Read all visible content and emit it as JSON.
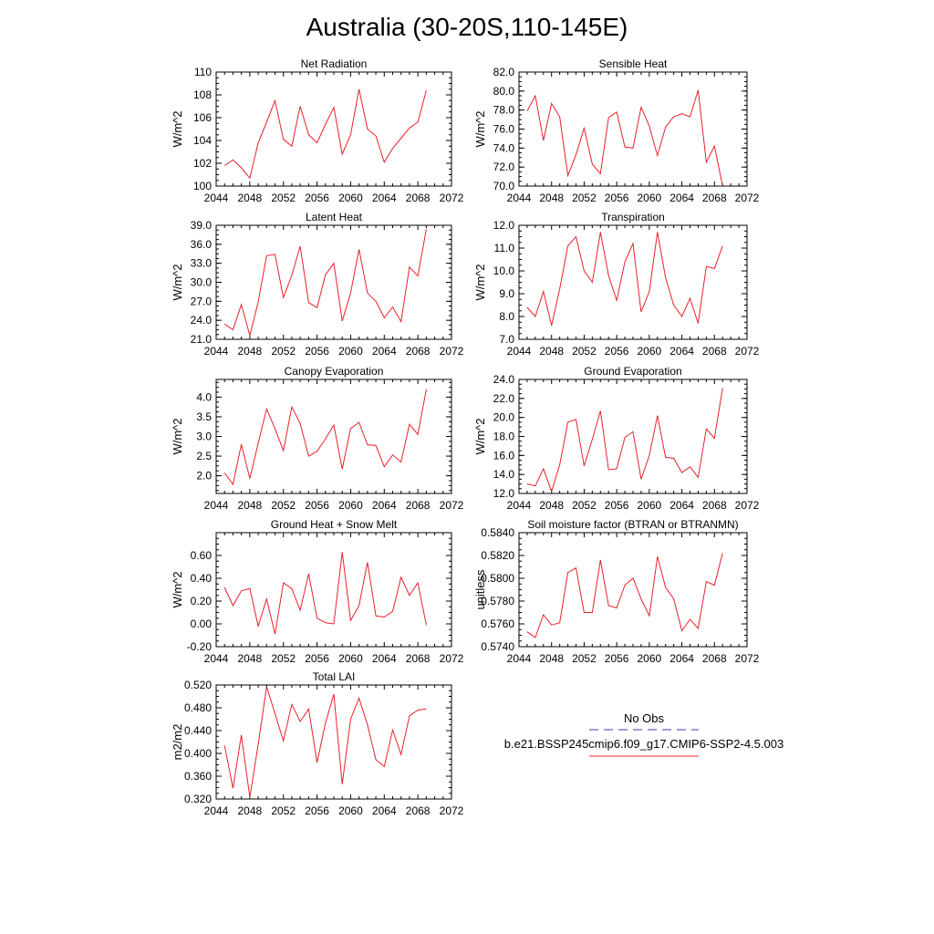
{
  "title": "Australia (30-20S,110-145E)",
  "legend": {
    "entries": [
      {
        "label": "No Obs",
        "color": "#3b3bb3",
        "style": "dashed"
      },
      {
        "label": "b.e21.BSSP245cmip6.f09_g17.CMIP6-SSP2-4.5.003",
        "color": "#e8202a",
        "style": "solid"
      }
    ]
  },
  "chart_data": [
    {
      "type": "line",
      "title": "Net Radiation",
      "ylabel": "W/m^2",
      "xlim": [
        2044,
        2072
      ],
      "ylim": [
        100,
        110
      ],
      "xticks": [
        2044,
        2048,
        2052,
        2056,
        2060,
        2064,
        2068,
        2072
      ],
      "yticks": [
        100,
        102,
        104,
        106,
        108,
        110
      ],
      "ytick_labels": [
        "100",
        "102",
        "104",
        "106",
        "108",
        "110"
      ],
      "x": [
        2045,
        2046,
        2047,
        2048,
        2049,
        2050,
        2051,
        2052,
        2053,
        2054,
        2055,
        2056,
        2057,
        2058,
        2059,
        2060,
        2061,
        2062,
        2063,
        2064,
        2065,
        2066,
        2067,
        2068,
        2069
      ],
      "series": [
        {
          "color": "#e8202a",
          "values": [
            101.8,
            102.3,
            101.6,
            100.7,
            103.8,
            105.6,
            107.5,
            104.1,
            103.5,
            107.0,
            104.5,
            103.8,
            105.4,
            106.9,
            102.8,
            104.5,
            108.5,
            105.0,
            104.4,
            102.1,
            103.3,
            104.2,
            105.1,
            105.6,
            108.4
          ]
        }
      ]
    },
    {
      "type": "line",
      "title": "Sensible Heat",
      "ylabel": "W/m^2",
      "xlim": [
        2044,
        2072
      ],
      "ylim": [
        70,
        82
      ],
      "xticks": [
        2044,
        2048,
        2052,
        2056,
        2060,
        2064,
        2068,
        2072
      ],
      "yticks": [
        70,
        72,
        74,
        76,
        78,
        80,
        82
      ],
      "ytick_labels": [
        "70.0",
        "72.0",
        "74.0",
        "76.0",
        "78.0",
        "80.0",
        "82.0"
      ],
      "x": [
        2045,
        2046,
        2047,
        2048,
        2049,
        2050,
        2051,
        2052,
        2053,
        2054,
        2055,
        2056,
        2057,
        2058,
        2059,
        2060,
        2061,
        2062,
        2063,
        2064,
        2065,
        2066,
        2067,
        2068,
        2069
      ],
      "series": [
        {
          "color": "#e8202a",
          "values": [
            77.9,
            79.5,
            74.8,
            78.7,
            77.3,
            71.1,
            73.3,
            76.1,
            72.3,
            71.3,
            77.2,
            77.8,
            74.1,
            74.0,
            78.3,
            76.3,
            73.2,
            76.2,
            77.3,
            77.6,
            77.3,
            80.1,
            72.5,
            74.2,
            70.0
          ]
        }
      ]
    },
    {
      "type": "line",
      "title": "Latent Heat",
      "ylabel": "W/m^2",
      "xlim": [
        2044,
        2072
      ],
      "ylim": [
        21,
        39
      ],
      "xticks": [
        2044,
        2048,
        2052,
        2056,
        2060,
        2064,
        2068,
        2072
      ],
      "yticks": [
        21,
        24,
        27,
        30,
        33,
        36,
        39
      ],
      "ytick_labels": [
        "21.0",
        "24.0",
        "27.0",
        "30.0",
        "33.0",
        "36.0",
        "39.0"
      ],
      "x": [
        2045,
        2046,
        2047,
        2048,
        2049,
        2050,
        2051,
        2052,
        2053,
        2054,
        2055,
        2056,
        2057,
        2058,
        2059,
        2060,
        2061,
        2062,
        2063,
        2064,
        2065,
        2066,
        2067,
        2068,
        2069
      ],
      "series": [
        {
          "color": "#e8202a",
          "values": [
            23.4,
            22.5,
            26.5,
            21.6,
            26.9,
            34.2,
            34.4,
            27.6,
            31.1,
            35.7,
            26.8,
            26.0,
            31.2,
            33.0,
            23.9,
            28.3,
            35.2,
            28.3,
            27.0,
            24.4,
            26.1,
            23.8,
            32.4,
            31.0,
            38.4
          ]
        }
      ]
    },
    {
      "type": "line",
      "title": "Transpiration",
      "ylabel": "W/m^2",
      "xlim": [
        2044,
        2072
      ],
      "ylim": [
        7,
        12
      ],
      "xticks": [
        2044,
        2048,
        2052,
        2056,
        2060,
        2064,
        2068,
        2072
      ],
      "yticks": [
        7,
        8,
        9,
        10,
        11,
        12
      ],
      "ytick_labels": [
        "7.0",
        "8.0",
        "9.0",
        "10.0",
        "11.0",
        "12.0"
      ],
      "x": [
        2045,
        2046,
        2047,
        2048,
        2049,
        2050,
        2051,
        2052,
        2053,
        2054,
        2055,
        2056,
        2057,
        2058,
        2059,
        2060,
        2061,
        2062,
        2063,
        2064,
        2065,
        2066,
        2067,
        2068,
        2069
      ],
      "series": [
        {
          "color": "#e8202a",
          "values": [
            8.4,
            8.0,
            9.1,
            7.6,
            9.2,
            11.1,
            11.5,
            10.0,
            9.5,
            11.7,
            9.8,
            8.7,
            10.4,
            11.2,
            8.2,
            9.1,
            11.7,
            9.7,
            8.5,
            8.0,
            8.8,
            7.7,
            10.2,
            10.1,
            11.1
          ]
        }
      ]
    },
    {
      "type": "line",
      "title": "Canopy Evaporation",
      "ylabel": "W/m^2",
      "xlim": [
        2044,
        2072
      ],
      "ylim": [
        1.55,
        4.45
      ],
      "xticks": [
        2044,
        2048,
        2052,
        2056,
        2060,
        2064,
        2068,
        2072
      ],
      "yticks": [
        2.0,
        2.5,
        3.0,
        3.5,
        4.0
      ],
      "ytick_labels": [
        "2.0",
        "2.5",
        "3.0",
        "3.5",
        "4.0"
      ],
      "x": [
        2045,
        2046,
        2047,
        2048,
        2049,
        2050,
        2051,
        2052,
        2053,
        2054,
        2055,
        2056,
        2057,
        2058,
        2059,
        2060,
        2061,
        2062,
        2063,
        2064,
        2065,
        2066,
        2067,
        2068,
        2069
      ],
      "series": [
        {
          "color": "#e8202a",
          "values": [
            2.07,
            1.78,
            2.8,
            1.93,
            2.83,
            3.7,
            3.2,
            2.64,
            3.75,
            3.33,
            2.5,
            2.62,
            2.94,
            3.29,
            2.17,
            3.2,
            3.36,
            2.79,
            2.77,
            2.23,
            2.53,
            2.35,
            3.31,
            3.05,
            4.2
          ]
        }
      ]
    },
    {
      "type": "line",
      "title": "Ground Evaporation",
      "ylabel": "W/m^2",
      "xlim": [
        2044,
        2072
      ],
      "ylim": [
        12,
        24
      ],
      "xticks": [
        2044,
        2048,
        2052,
        2056,
        2060,
        2064,
        2068,
        2072
      ],
      "yticks": [
        12,
        14,
        16,
        18,
        20,
        22,
        24
      ],
      "ytick_labels": [
        "12.0",
        "14.0",
        "16.0",
        "18.0",
        "20.0",
        "22.0",
        "24.0"
      ],
      "x": [
        2045,
        2046,
        2047,
        2048,
        2049,
        2050,
        2051,
        2052,
        2053,
        2054,
        2055,
        2056,
        2057,
        2058,
        2059,
        2060,
        2061,
        2062,
        2063,
        2064,
        2065,
        2066,
        2067,
        2068,
        2069
      ],
      "series": [
        {
          "color": "#e8202a",
          "values": [
            13.0,
            12.8,
            14.6,
            12.2,
            15.0,
            19.5,
            19.8,
            14.9,
            17.7,
            20.7,
            14.5,
            14.6,
            17.9,
            18.5,
            13.5,
            16.0,
            20.2,
            15.8,
            15.7,
            14.2,
            14.8,
            13.7,
            18.8,
            17.8,
            23.1
          ]
        }
      ]
    },
    {
      "type": "line",
      "title": "Ground Heat + Snow Melt",
      "ylabel": "W/m^2",
      "xlim": [
        2044,
        2072
      ],
      "ylim": [
        -0.2,
        0.8
      ],
      "xticks": [
        2044,
        2048,
        2052,
        2056,
        2060,
        2064,
        2068,
        2072
      ],
      "yticks": [
        -0.2,
        0.0,
        0.2,
        0.4,
        0.6
      ],
      "ytick_labels": [
        "-0.20",
        "0.00",
        "0.20",
        "0.40",
        "0.60"
      ],
      "x": [
        2045,
        2046,
        2047,
        2048,
        2049,
        2050,
        2051,
        2052,
        2053,
        2054,
        2055,
        2056,
        2057,
        2058,
        2059,
        2060,
        2061,
        2062,
        2063,
        2064,
        2065,
        2066,
        2067,
        2068,
        2069
      ],
      "series": [
        {
          "color": "#e8202a",
          "values": [
            0.32,
            0.16,
            0.29,
            0.31,
            -0.02,
            0.22,
            -0.09,
            0.36,
            0.31,
            0.12,
            0.44,
            0.05,
            0.01,
            0.0,
            0.63,
            0.03,
            0.16,
            0.54,
            0.07,
            0.06,
            0.11,
            0.41,
            0.25,
            0.36,
            -0.01
          ]
        }
      ]
    },
    {
      "type": "line",
      "title": "Soil moisture factor (BTRAN or BTRANMN)",
      "ylabel": "unitless",
      "xlim": [
        2044,
        2072
      ],
      "ylim": [
        0.574,
        0.584
      ],
      "xticks": [
        2044,
        2048,
        2052,
        2056,
        2060,
        2064,
        2068,
        2072
      ],
      "yticks": [
        0.574,
        0.576,
        0.578,
        0.58,
        0.582,
        0.584
      ],
      "ytick_labels": [
        "0.5740",
        "0.5760",
        "0.5780",
        "0.5800",
        "0.5820",
        "0.5840"
      ],
      "x": [
        2045,
        2046,
        2047,
        2048,
        2049,
        2050,
        2051,
        2052,
        2053,
        2054,
        2055,
        2056,
        2057,
        2058,
        2059,
        2060,
        2061,
        2062,
        2063,
        2064,
        2065,
        2066,
        2067,
        2068,
        2069
      ],
      "series": [
        {
          "color": "#e8202a",
          "values": [
            0.5753,
            0.5748,
            0.5768,
            0.5759,
            0.5761,
            0.5805,
            0.5809,
            0.577,
            0.577,
            0.5816,
            0.5776,
            0.5774,
            0.5794,
            0.58,
            0.5782,
            0.5767,
            0.5819,
            0.5792,
            0.5782,
            0.5754,
            0.5764,
            0.5756,
            0.5797,
            0.5794,
            0.5822
          ]
        }
      ]
    },
    {
      "type": "line",
      "title": "Total LAI",
      "ylabel": "m2/m2",
      "xlim": [
        2044,
        2072
      ],
      "ylim": [
        0.32,
        0.52
      ],
      "xticks": [
        2044,
        2048,
        2052,
        2056,
        2060,
        2064,
        2068,
        2072
      ],
      "yticks": [
        0.32,
        0.36,
        0.4,
        0.44,
        0.48,
        0.52
      ],
      "ytick_labels": [
        "0.320",
        "0.360",
        "0.400",
        "0.440",
        "0.480",
        "0.520"
      ],
      "x": [
        2045,
        2046,
        2047,
        2048,
        2049,
        2050,
        2051,
        2052,
        2053,
        2054,
        2055,
        2056,
        2057,
        2058,
        2059,
        2060,
        2061,
        2062,
        2063,
        2064,
        2065,
        2066,
        2067,
        2068,
        2069
      ],
      "series": [
        {
          "color": "#e8202a",
          "values": [
            0.414,
            0.339,
            0.432,
            0.323,
            0.416,
            0.517,
            0.47,
            0.422,
            0.486,
            0.456,
            0.478,
            0.384,
            0.453,
            0.504,
            0.346,
            0.46,
            0.497,
            0.45,
            0.389,
            0.377,
            0.441,
            0.398,
            0.466,
            0.476,
            0.478
          ]
        }
      ]
    }
  ]
}
